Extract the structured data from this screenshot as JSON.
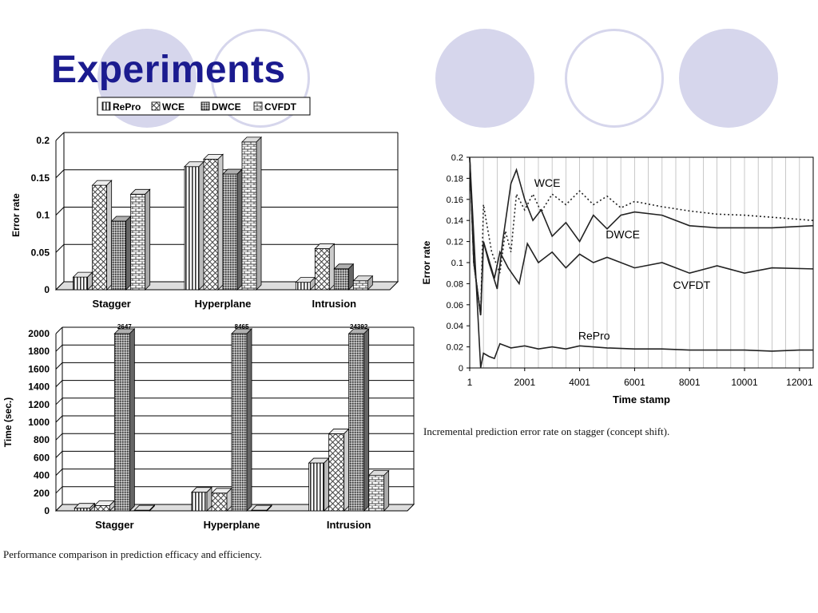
{
  "slide": {
    "title": "Experiments"
  },
  "decor": {
    "circle_fill": "#d6d6ec",
    "title_color": "#1b1b8f"
  },
  "captions": {
    "left": "Performance comparison in prediction efficacy and efficiency.",
    "right": "Incremental prediction error rate on stagger (concept shift)."
  },
  "chart_data": [
    {
      "type": "bar",
      "legend": [
        "RePro",
        "WCE",
        "DWCE",
        "CVFDT"
      ],
      "legend_position": "top",
      "categories": [
        "Stagger",
        "Hyperplane",
        "Intrusion"
      ],
      "ylabel": "Error rate",
      "ylim": [
        0,
        0.2
      ],
      "yticks": [
        "0",
        "0.05",
        "0.1",
        "0.15",
        "0.2"
      ],
      "series": [
        {
          "name": "RePro",
          "values": [
            0.017,
            0.165,
            0.01
          ]
        },
        {
          "name": "WCE",
          "values": [
            0.14,
            0.175,
            0.055
          ]
        },
        {
          "name": "DWCE",
          "values": [
            0.092,
            0.155,
            0.028
          ]
        },
        {
          "name": "CVFDT",
          "values": [
            0.128,
            0.198,
            0.012
          ]
        }
      ],
      "grid": true
    },
    {
      "type": "bar",
      "categories": [
        "Stagger",
        "Hyperplane",
        "Intrusion"
      ],
      "ylabel": "Time (sec.)",
      "ylim": [
        0,
        2000
      ],
      "yticks": [
        "0",
        "200",
        "400",
        "600",
        "800",
        "1000",
        "1200",
        "1400",
        "1600",
        "1800",
        "2000"
      ],
      "series": [
        {
          "name": "RePro",
          "values": [
            30,
            210,
            540
          ]
        },
        {
          "name": "WCE",
          "values": [
            60,
            200,
            870
          ]
        },
        {
          "name": "DWCE",
          "values": [
            2647,
            8465,
            24392
          ]
        },
        {
          "name": "CVFDT",
          "values": [
            8,
            8,
            400
          ]
        }
      ],
      "annotations": [
        "2647",
        "8465",
        "24392"
      ],
      "grid": true
    },
    {
      "type": "line",
      "xlabel": "Time stamp",
      "ylabel": "Error rate",
      "xlim": [
        1,
        12500
      ],
      "ylim": [
        0,
        0.2
      ],
      "xticks": [
        "1",
        "2001",
        "4001",
        "6001",
        "8001",
        "10001",
        "12001"
      ],
      "yticks": [
        "0",
        "0.02",
        "0.04",
        "0.06",
        "0.08",
        "0.1",
        "0.12",
        "0.14",
        "0.16",
        "0.18",
        "0.2"
      ],
      "series_labels": [
        "WCE",
        "DWCE",
        "CVFDT",
        "RePro"
      ],
      "series": [
        {
          "name": "WCE",
          "style": "dotted",
          "x": [
            1,
            150,
            400,
            500,
            800,
            1100,
            1300,
            1500,
            1700,
            2000,
            2300,
            2600,
            3000,
            3500,
            4000,
            4500,
            5000,
            5500,
            6000,
            7000,
            8000,
            9000,
            10000,
            11000,
            12500
          ],
          "y": [
            0.2,
            0.1,
            0.05,
            0.155,
            0.11,
            0.09,
            0.13,
            0.11,
            0.165,
            0.15,
            0.165,
            0.148,
            0.165,
            0.155,
            0.168,
            0.155,
            0.163,
            0.152,
            0.158,
            0.153,
            0.149,
            0.146,
            0.145,
            0.143,
            0.14
          ]
        },
        {
          "name": "DWCE",
          "style": "solid",
          "x": [
            1,
            150,
            400,
            500,
            700,
            1000,
            1200,
            1500,
            1700,
            2000,
            2300,
            2600,
            3000,
            3500,
            4000,
            4500,
            5000,
            5500,
            6000,
            7000,
            8000,
            9000,
            10000,
            11000,
            12500
          ],
          "y": [
            0.2,
            0.1,
            0.05,
            0.12,
            0.1,
            0.075,
            0.12,
            0.175,
            0.188,
            0.16,
            0.14,
            0.15,
            0.125,
            0.138,
            0.12,
            0.145,
            0.132,
            0.145,
            0.148,
            0.145,
            0.135,
            0.133,
            0.133,
            0.133,
            0.135
          ]
        },
        {
          "name": "CVFDT",
          "style": "solid",
          "x": [
            1,
            150,
            400,
            500,
            900,
            1100,
            1400,
            1800,
            2100,
            2500,
            3000,
            3500,
            4000,
            4500,
            5000,
            6000,
            7000,
            8000,
            9000,
            10000,
            11000,
            12500
          ],
          "y": [
            0.2,
            0.1,
            0.05,
            0.12,
            0.085,
            0.11,
            0.095,
            0.08,
            0.118,
            0.1,
            0.11,
            0.095,
            0.108,
            0.1,
            0.105,
            0.095,
            0.1,
            0.09,
            0.097,
            0.09,
            0.095,
            0.094
          ]
        },
        {
          "name": "RePro",
          "style": "solid",
          "x": [
            1,
            200,
            400,
            500,
            700,
            900,
            1100,
            1500,
            2000,
            2500,
            3000,
            3500,
            4000,
            5000,
            6000,
            7000,
            8000,
            9000,
            10000,
            11000,
            12000,
            12500
          ],
          "y": [
            0.2,
            0.1,
            0.0,
            0.014,
            0.011,
            0.009,
            0.023,
            0.019,
            0.021,
            0.018,
            0.02,
            0.018,
            0.021,
            0.019,
            0.018,
            0.018,
            0.017,
            0.017,
            0.017,
            0.016,
            0.017,
            0.017
          ]
        }
      ],
      "grid": true
    }
  ]
}
